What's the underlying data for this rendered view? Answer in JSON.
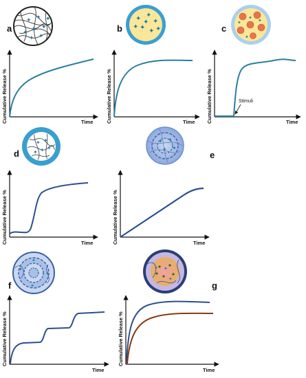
{
  "labels": {
    "a": "a",
    "b": "b",
    "c": "c",
    "d": "d",
    "e": "e",
    "f": "f",
    "g": "g",
    "y_axis": "Cumulative Release %",
    "x_axis": "Time",
    "stimuli": "Stimuli"
  },
  "colors": {
    "curve_blue": "#2b7da0",
    "curve_navy": "#2a4f8f",
    "curve_brown": "#8b3a12",
    "axis": "#111111",
    "shell_blue": "#3a9fd0",
    "core_yellow": "#fbe79a",
    "particle_red": "#e8744a",
    "polymer_grey": "#333333",
    "drug_teal": "#1f7f9c"
  },
  "panels": [
    {
      "id": "a",
      "profile": "sustained-logarithmic",
      "carrier": "polymer-matrix-sphere"
    },
    {
      "id": "b",
      "profile": "burst-then-plateau",
      "carrier": "reservoir-capsule"
    },
    {
      "id": "c",
      "profile": "stimuli-triggered",
      "carrier": "capsule-with-nanoparticles"
    },
    {
      "id": "d",
      "profile": "lag-then-release",
      "carrier": "coated-polymer-matrix"
    },
    {
      "id": "e",
      "profile": "zero-order-linear",
      "carrier": "layered-sphere"
    },
    {
      "id": "f",
      "profile": "pulsatile-stepwise",
      "carrier": "multilayer-concentric"
    },
    {
      "id": "g",
      "profile": "dual-release",
      "carrier": "composite-sphere"
    }
  ]
}
